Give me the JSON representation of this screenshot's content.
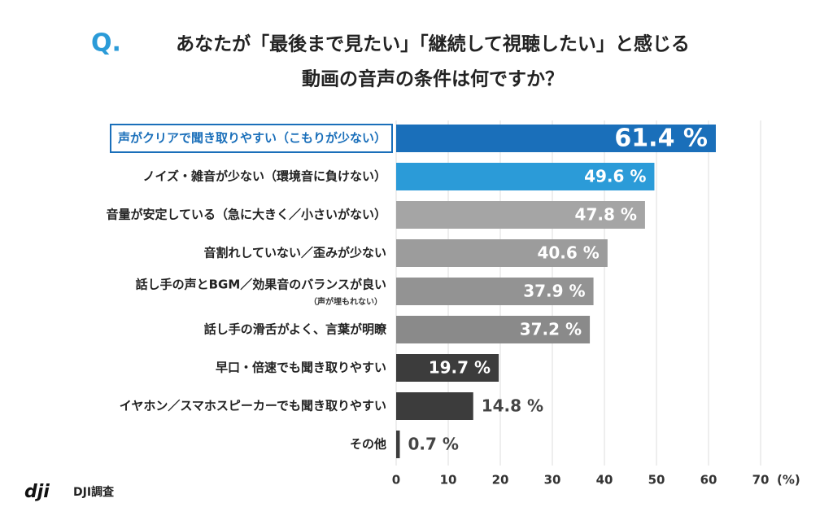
{
  "chart_data": {
    "type": "hbar",
    "title_marker": "Q.",
    "title_lines": [
      "あなたが「最後まで見たい」「継続して視聴したい」と感じる",
      "動画の音声の条件は何ですか？"
    ],
    "categories": [
      "声がクリアで聞き取りやすい（こもりが少ない）",
      "ノイズ・雑音が少ない（環境音に負けない）",
      "音量が安定している（急に大きく／小さいがない）",
      "音割れしていない／歪みが少ない",
      "話し手の声とBGM／効果音のバランスが良い",
      "話し手の滑舌がよく、言葉が明瞭",
      "早口・倍速でも聞き取りやすい",
      "イヤホン／スマホスピーカーでも聞き取りやすい",
      "その他"
    ],
    "annotations": [
      {
        "category_index": 4,
        "text": "（声が埋もれない）"
      }
    ],
    "highlight_index": 0,
    "values": [
      61.4,
      49.6,
      47.8,
      40.6,
      37.9,
      37.2,
      19.7,
      14.8,
      0.7
    ],
    "value_labels": [
      "61.4 %",
      "49.6 %",
      "47.8 %",
      "40.6 %",
      "37.9 %",
      "37.2 %",
      "19.7 %",
      "14.8 %",
      "0.7 %"
    ],
    "colors": [
      "#1a6fba",
      "#2b9bd8",
      "#a5a5a5",
      "#9c9c9c",
      "#939393",
      "#8a8a8a",
      "#3c3c3c",
      "#3c3c3c",
      "#3c3c3c"
    ],
    "xlim": [
      0,
      70
    ],
    "xticks": [
      0,
      10,
      20,
      30,
      40,
      50,
      60,
      70
    ],
    "x_unit": "(%)",
    "grid": true,
    "source_logo": "dji",
    "source": "DJI調査"
  }
}
